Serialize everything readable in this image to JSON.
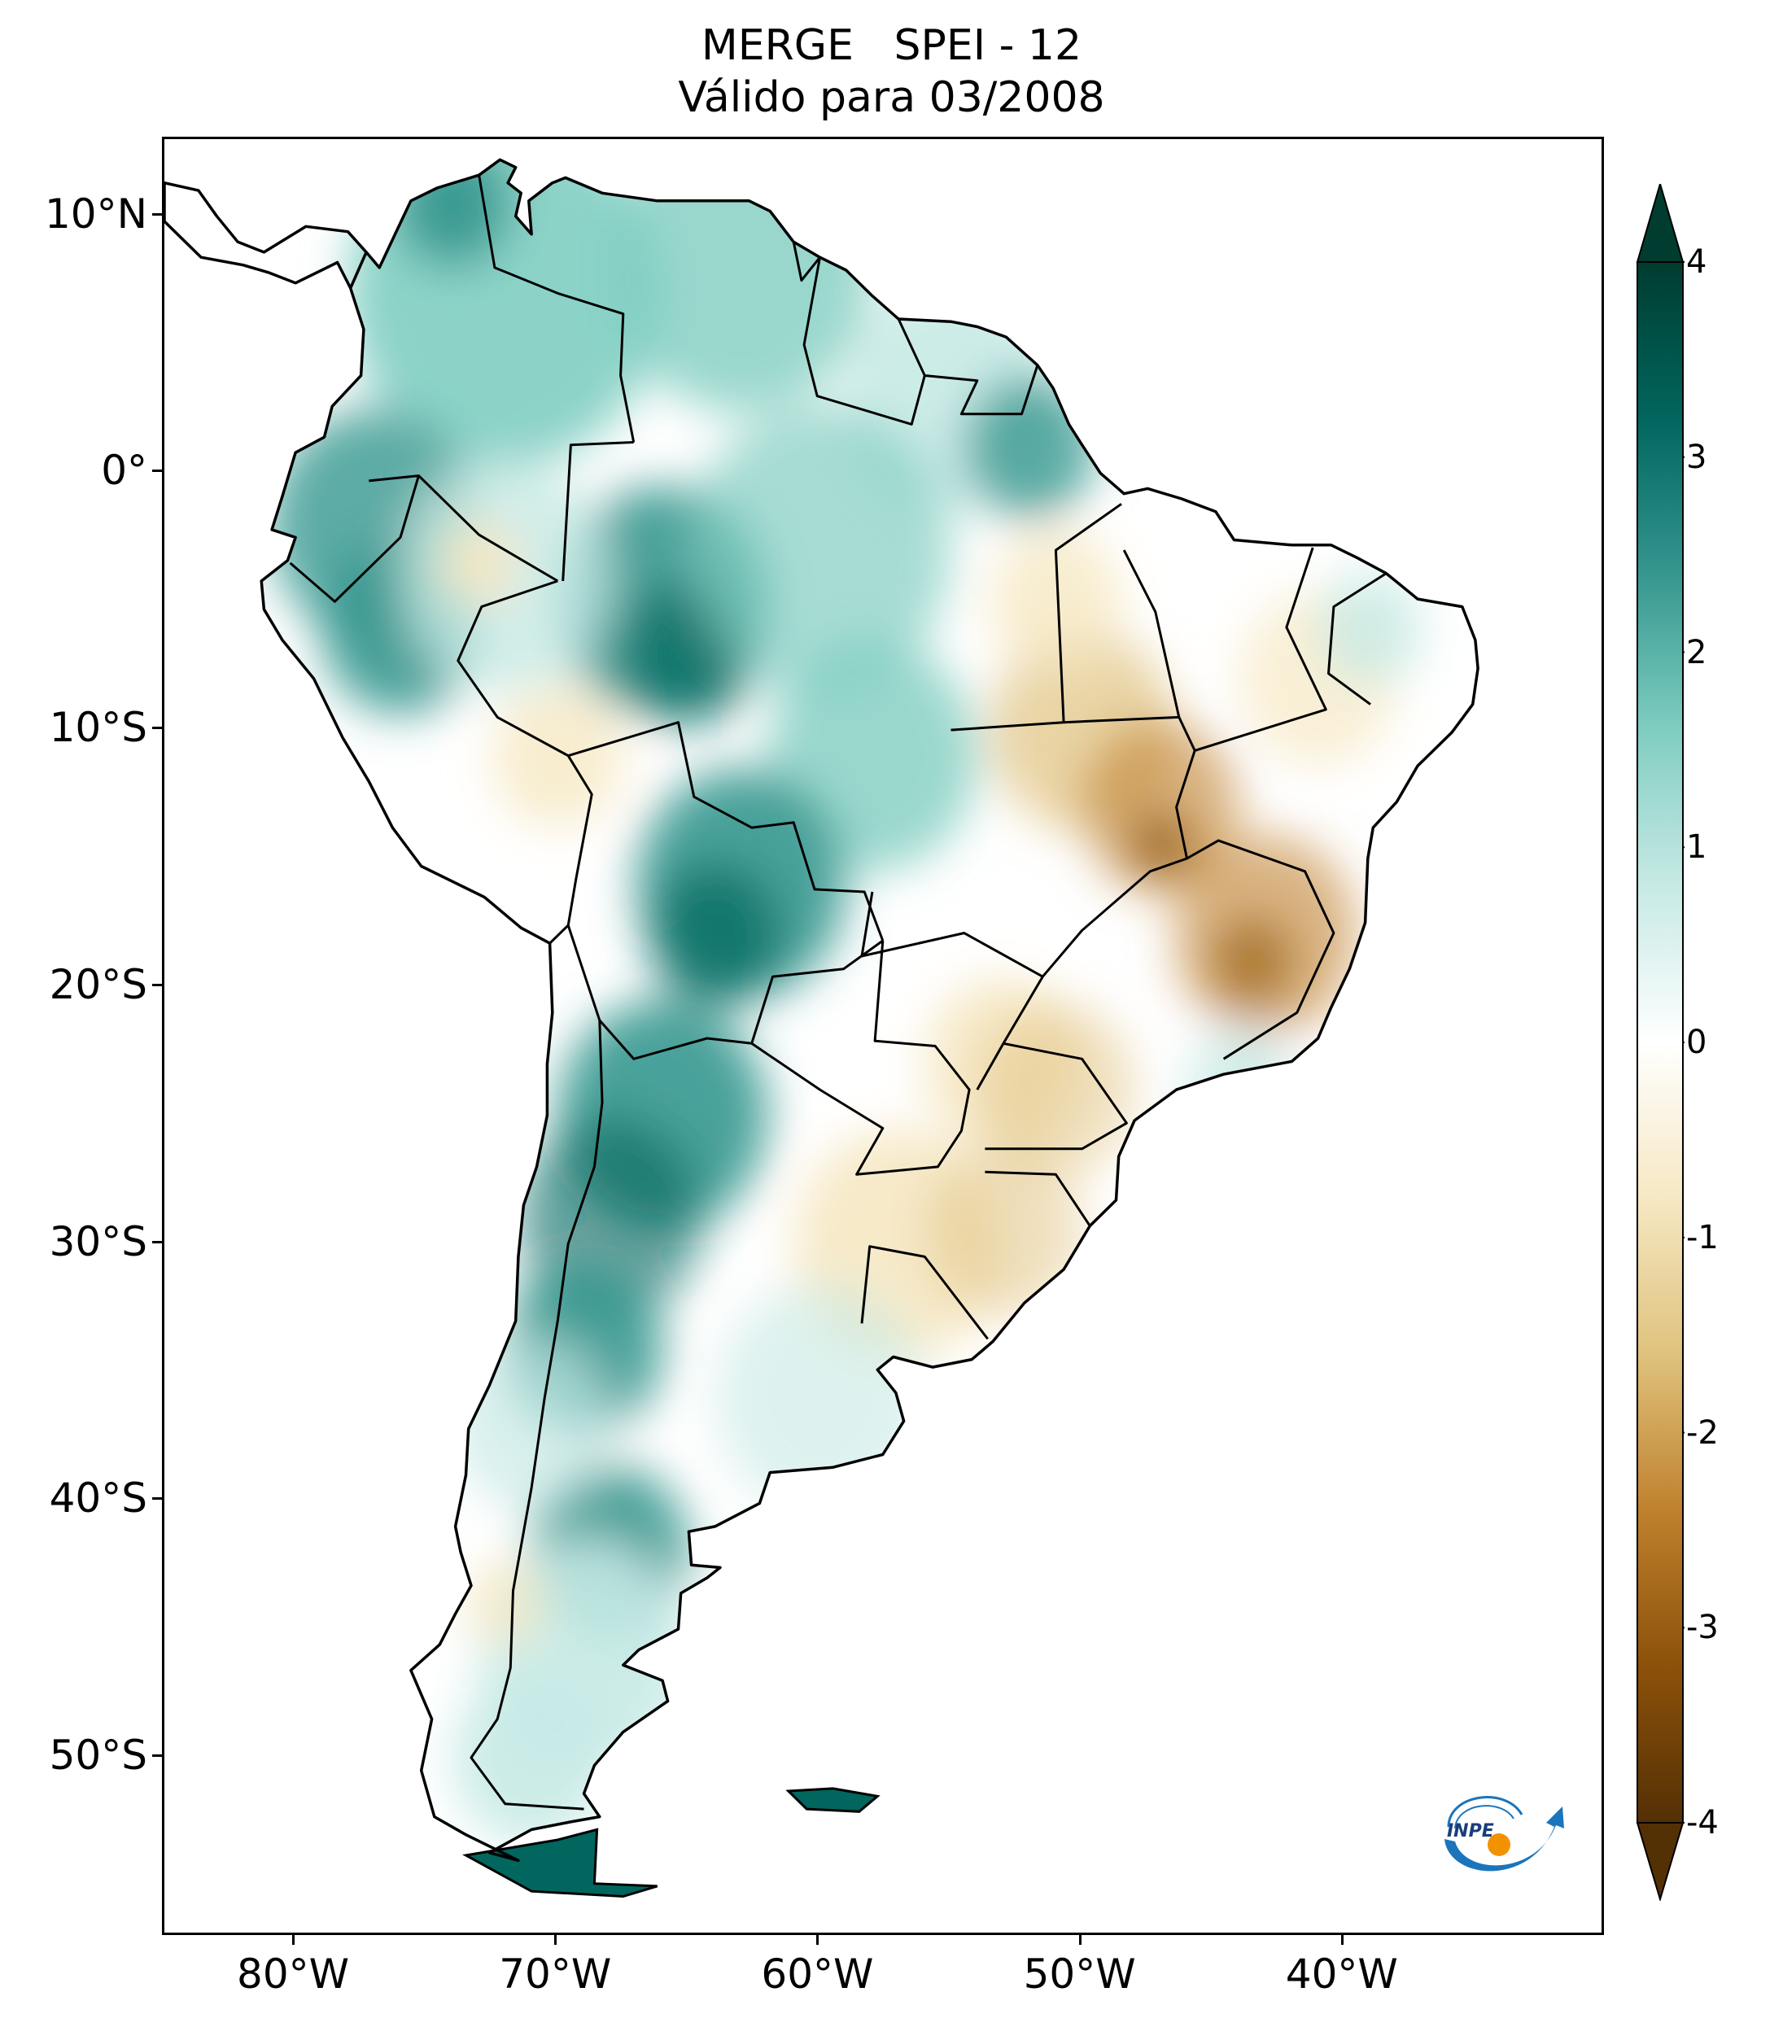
{
  "title": {
    "line1": "MERGE   SPEI - 12",
    "line2": "Válido para 03/2008"
  },
  "map": {
    "region": "South America",
    "projection": "lat-lon",
    "lon_range": [
      -85,
      -30
    ],
    "lat_range": [
      -57,
      13
    ],
    "lat_ticks": [
      {
        "value": 10,
        "label": "10°N"
      },
      {
        "value": 0,
        "label": "0°"
      },
      {
        "value": -10,
        "label": "10°S"
      },
      {
        "value": -20,
        "label": "20°S"
      },
      {
        "value": -30,
        "label": "30°S"
      },
      {
        "value": -40,
        "label": "40°S"
      },
      {
        "value": -50,
        "label": "50°S"
      }
    ],
    "lon_ticks": [
      {
        "value": -80,
        "label": "80°W"
      },
      {
        "value": -70,
        "label": "70°W"
      },
      {
        "value": -60,
        "label": "60°W"
      },
      {
        "value": -50,
        "label": "50°W"
      },
      {
        "value": -40,
        "label": "40°W"
      }
    ]
  },
  "colorbar": {
    "min": -4,
    "max": 4,
    "ticks": [
      {
        "value": 4,
        "label": "4"
      },
      {
        "value": 3,
        "label": "3"
      },
      {
        "value": 2,
        "label": "2"
      },
      {
        "value": 1,
        "label": "1"
      },
      {
        "value": 0,
        "label": "0"
      },
      {
        "value": -1,
        "label": "-1"
      },
      {
        "value": -2,
        "label": "-2"
      },
      {
        "value": -3,
        "label": "-3"
      },
      {
        "value": -4,
        "label": "-4"
      }
    ],
    "colors": {
      "wet_extreme": "#003c30",
      "wet_high": "#01665e",
      "wet_mid": "#35978f",
      "wet_low": "#80cdc1",
      "wet_faint": "#c7eae5",
      "neutral": "#ffffff",
      "dry_faint": "#f6e8c3",
      "dry_low": "#dfc27d",
      "dry_mid": "#bf812d",
      "dry_high": "#8c510a",
      "dry_extreme": "#543005"
    }
  },
  "logo": {
    "text": "INPE",
    "primary_color": "#1a75bc",
    "dot_color": "#f39200"
  }
}
